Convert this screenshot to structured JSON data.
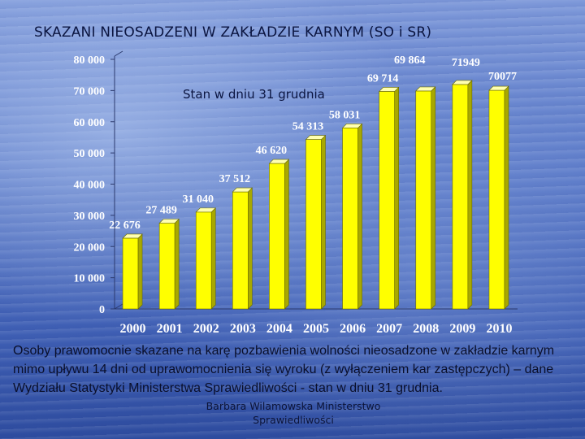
{
  "slide": {
    "title": "SKAZANI  NIEOSADZENI W ZAKŁADZIE KARNYM (SO i SR)",
    "caption": "Osoby prawomocnie skazane na karę pozbawienia wolności nieosadzone w zakładzie karnym mimo upływu 14 dni od uprawomocnienia się wyroku (z wyłączeniem kar zastępczych) – dane  Wydziału Statystyki Ministerstwa Sprawiedliwości -  stan w dniu 31 grudnia.",
    "credit": "Barbara Wilamowska Ministerstwo Sprawiedliwości"
  },
  "chart_data": {
    "type": "bar",
    "title": "",
    "annotation": "Stan w dniu 31 grudnia",
    "xlabel": "",
    "ylabel": "",
    "ylim": [
      0,
      80000
    ],
    "yticks": [
      0,
      10000,
      20000,
      30000,
      40000,
      50000,
      60000,
      70000,
      80000
    ],
    "ytick_labels": [
      "0",
      "10 000",
      "20 000",
      "30 000",
      "40 000",
      "50 000",
      "60 000",
      "70 000",
      "80 000"
    ],
    "categories": [
      "2000",
      "2001",
      "2002",
      "2003",
      "2004",
      "2005",
      "2006",
      "2007",
      "2008",
      "2009",
      "2010"
    ],
    "values": [
      22676,
      27489,
      31040,
      37512,
      46620,
      54313,
      58031,
      69714,
      69864,
      71949,
      70077
    ],
    "data_labels": [
      "22 676",
      "27 489",
      "31 040",
      "37 512",
      "46 620",
      "54 313",
      "58 031",
      "69 714",
      "69 864",
      "71949",
      "70077"
    ],
    "grid": false,
    "legend": "none",
    "bar_color": "#ffff00"
  }
}
